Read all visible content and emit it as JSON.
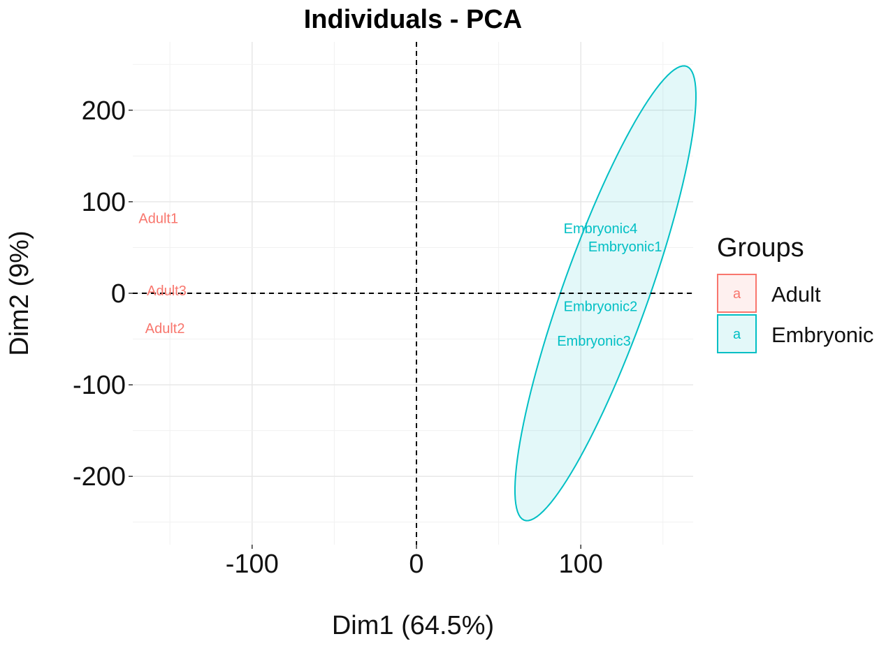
{
  "chart_data": {
    "type": "scatter",
    "title": "Individuals - PCA",
    "xlabel": "Dim1 (64.5%)",
    "ylabel": "Dim2 (9%)",
    "xlim": [
      -160,
      168
    ],
    "ylim": [
      -275,
      275
    ],
    "xticks": [
      -100,
      0,
      100
    ],
    "xtick_labels": [
      "-100",
      "0",
      "100"
    ],
    "yticks": [
      -200,
      -100,
      0,
      100,
      200
    ],
    "ytick_labels": [
      "-200",
      "-100",
      "0",
      "100",
      "200"
    ],
    "grid": true,
    "reference_lines": {
      "x": 0,
      "y": 0,
      "style": "dashed"
    },
    "legend": {
      "title": "Groups",
      "position": "right",
      "key_glyph": "a",
      "entries": [
        "Adult",
        "Embryonic"
      ]
    },
    "series": [
      {
        "name": "Adult",
        "color": "#F8766D",
        "points": [
          {
            "label": "Adult1",
            "x": -157,
            "y": 82
          },
          {
            "label": "Adult3",
            "x": -152,
            "y": 3
          },
          {
            "label": "Adult2",
            "x": -153,
            "y": -38
          }
        ]
      },
      {
        "name": "Embryonic",
        "color": "#00BFC4",
        "ellipse": {
          "cx": 115,
          "cy": 0,
          "semi_major": 253,
          "semi_minor": 27,
          "angle_deg": 79
        },
        "points": [
          {
            "label": "Embryonic4",
            "x": 112,
            "y": 71
          },
          {
            "label": "Embryonic1",
            "x": 127,
            "y": 51
          },
          {
            "label": "Embryonic2",
            "x": 112,
            "y": -14
          },
          {
            "label": "Embryonic3",
            "x": 108,
            "y": -52
          }
        ]
      }
    ]
  }
}
